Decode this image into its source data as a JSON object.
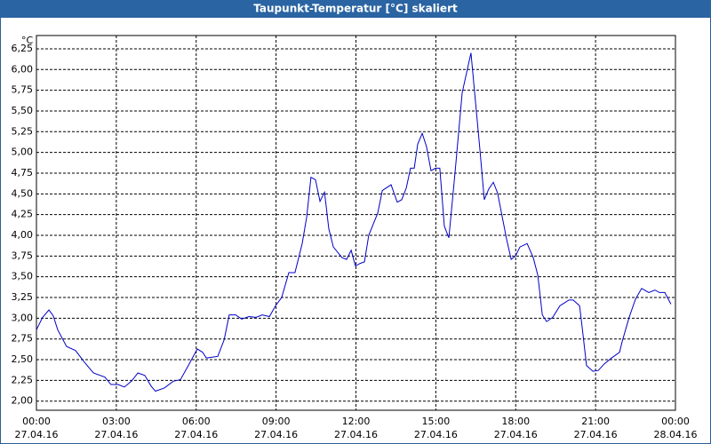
{
  "chart_data": {
    "type": "line",
    "title": "Taupunkt-Temperatur [°C] skaliert",
    "y_unit": "°C",
    "color": "#0000c8",
    "grid": true,
    "xlim": [
      0,
      24
    ],
    "ylim": [
      1.89,
      6.41
    ],
    "yticks": [
      {
        "value": 2,
        "label": "2,00"
      },
      {
        "value": 2.25,
        "label": "2,25"
      },
      {
        "value": 2.5,
        "label": "2,50"
      },
      {
        "value": 2.75,
        "label": "2,75"
      },
      {
        "value": 3,
        "label": "3,00"
      },
      {
        "value": 3.25,
        "label": "3,25"
      },
      {
        "value": 3.5,
        "label": "3,50"
      },
      {
        "value": 3.75,
        "label": "3,75"
      },
      {
        "value": 4,
        "label": "4,00"
      },
      {
        "value": 4.25,
        "label": "4,25"
      },
      {
        "value": 4.5,
        "label": "4,50"
      },
      {
        "value": 4.75,
        "label": "4,75"
      },
      {
        "value": 5,
        "label": "5,00"
      },
      {
        "value": 5.25,
        "label": "5,25"
      },
      {
        "value": 5.5,
        "label": "5,50"
      },
      {
        "value": 5.75,
        "label": "5,75"
      },
      {
        "value": 6,
        "label": "6,00"
      },
      {
        "value": 6.25,
        "label": "6,25"
      }
    ],
    "xticks": [
      {
        "value": 0,
        "label": "00:00"
      },
      {
        "value": 3,
        "label": "03:00"
      },
      {
        "value": 6,
        "label": "06:00"
      },
      {
        "value": 9,
        "label": "09:00"
      },
      {
        "value": 12,
        "label": "12:00"
      },
      {
        "value": 15,
        "label": "15:00"
      },
      {
        "value": 18,
        "label": "18:00"
      },
      {
        "value": 21,
        "label": "21:00"
      },
      {
        "value": 24,
        "label": "00:00"
      }
    ],
    "xtick_dates": [
      "27.04.16",
      "27.04.16",
      "27.04.16",
      "27.04.16",
      "27.04.16",
      "27.04.16",
      "27.04.16",
      "27.04.16",
      "28.04.16"
    ],
    "x": [
      0,
      0.23,
      0.47,
      0.63,
      0.8,
      1.13,
      1.47,
      1.8,
      2.14,
      2.57,
      2.8,
      3.07,
      3.3,
      3.57,
      3.81,
      4.07,
      4.31,
      4.47,
      4.81,
      5.14,
      5.41,
      5.74,
      6.04,
      6.24,
      6.38,
      6.81,
      7.05,
      7.24,
      7.48,
      7.71,
      7.98,
      8.24,
      8.48,
      8.75,
      8.98,
      9.21,
      9.48,
      9.71,
      9.98,
      10.15,
      10.31,
      10.48,
      10.65,
      10.82,
      10.98,
      11.15,
      11.48,
      11.65,
      11.82,
      11.98,
      12.15,
      12.32,
      12.48,
      12.82,
      12.99,
      13.32,
      13.55,
      13.72,
      13.89,
      14.05,
      14.19,
      14.32,
      14.49,
      14.65,
      14.82,
      14.99,
      15.15,
      15.32,
      15.49,
      15.72,
      15.99,
      16.32,
      16.49,
      16.66,
      16.82,
      16.99,
      17.16,
      17.32,
      17.66,
      17.83,
      17.99,
      18.16,
      18.43,
      18.66,
      18.83,
      19,
      19.16,
      19.39,
      19.66,
      20,
      20.16,
      20.4,
      20.5,
      20.66,
      20.9,
      21.1,
      21.33,
      21.6,
      21.9,
      22,
      22.26,
      22.5,
      22.73,
      23,
      23.23,
      23.4,
      23.6,
      23.83
    ],
    "values": [
      2.86,
      3.01,
      3.1,
      3.03,
      2.86,
      2.66,
      2.61,
      2.47,
      2.34,
      2.29,
      2.2,
      2.2,
      2.17,
      2.24,
      2.34,
      2.31,
      2.18,
      2.12,
      2.16,
      2.24,
      2.26,
      2.45,
      2.63,
      2.59,
      2.52,
      2.54,
      2.74,
      3.04,
      3.04,
      2.99,
      3.02,
      3.01,
      3.04,
      3.02,
      3.15,
      3.25,
      3.55,
      3.55,
      3.9,
      4.22,
      4.7,
      4.67,
      4.41,
      4.52,
      4.08,
      3.86,
      3.73,
      3.71,
      3.82,
      3.63,
      3.66,
      3.68,
      4,
      4.27,
      4.54,
      4.61,
      4.4,
      4.43,
      4.57,
      4.81,
      4.81,
      5.1,
      5.23,
      5.07,
      4.78,
      4.81,
      4.81,
      4.11,
      3.97,
      4.75,
      5.72,
      6.2,
      5.61,
      5.02,
      4.43,
      4.56,
      4.64,
      4.51,
      3.95,
      3.71,
      3.75,
      3.86,
      3.9,
      3.73,
      3.52,
      3.04,
      2.96,
      3.01,
      3.15,
      3.22,
      3.22,
      3.15,
      2.88,
      2.43,
      2.36,
      2.37,
      2.45,
      2.52,
      2.59,
      2.72,
      3.01,
      3.23,
      3.36,
      3.31,
      3.34,
      3.31,
      3.31,
      3.17
    ]
  }
}
